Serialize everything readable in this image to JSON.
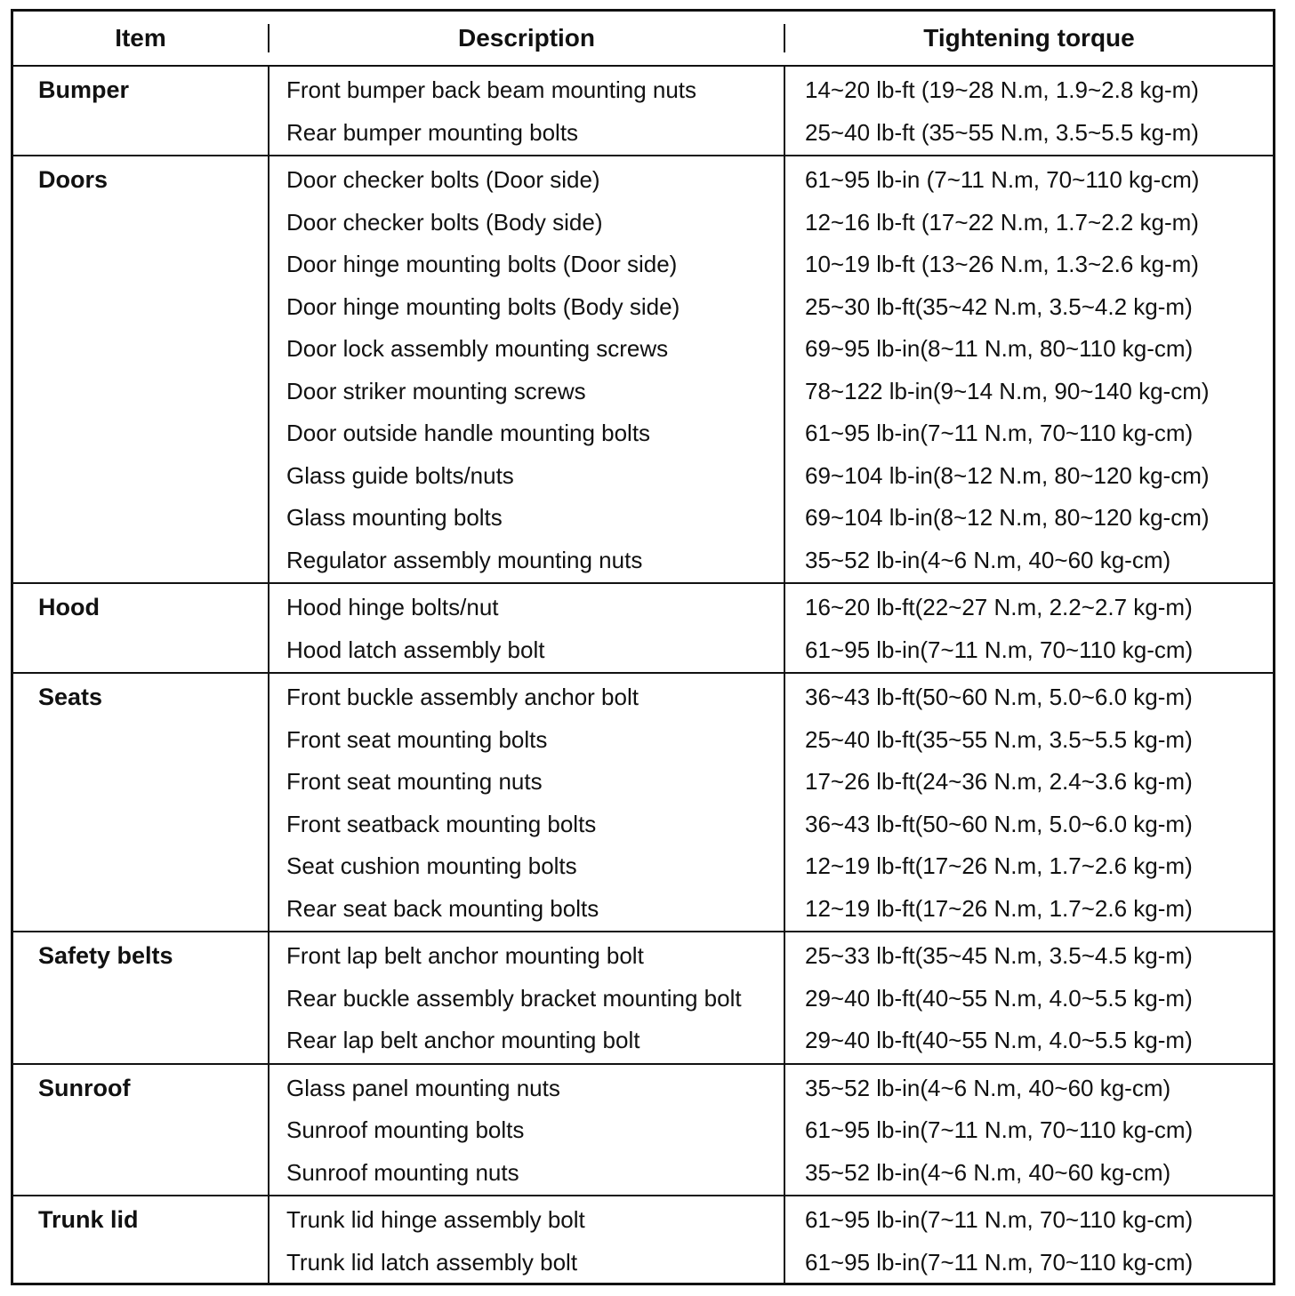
{
  "colors": {
    "ink": "#111111",
    "paper": "#ffffff"
  },
  "table": {
    "headers": {
      "item": "Item",
      "description": "Description",
      "torque": "Tightening torque"
    },
    "sections": [
      {
        "item": "Bumper",
        "rows": [
          {
            "description": "Front bumper back beam mounting nuts",
            "torque": "14~20 lb-ft (19~28 N.m, 1.9~2.8 kg-m)"
          },
          {
            "description": "Rear bumper mounting bolts",
            "torque": "25~40 lb-ft (35~55 N.m, 3.5~5.5 kg-m)"
          }
        ]
      },
      {
        "item": "Doors",
        "rows": [
          {
            "description": "Door checker bolts (Door side)",
            "torque": "61~95 lb-in (7~11 N.m, 70~110 kg-cm)"
          },
          {
            "description": "Door checker bolts (Body side)",
            "torque": "12~16 lb-ft (17~22 N.m, 1.7~2.2 kg-m)"
          },
          {
            "description": "Door hinge mounting bolts (Door side)",
            "torque": "10~19 lb-ft (13~26 N.m, 1.3~2.6 kg-m)"
          },
          {
            "description": "Door hinge mounting bolts (Body side)",
            "torque": "25~30 lb-ft(35~42 N.m, 3.5~4.2 kg-m)"
          },
          {
            "description": "Door lock assembly mounting screws",
            "torque": "69~95 lb-in(8~11 N.m, 80~110 kg-cm)"
          },
          {
            "description": "Door striker mounting screws",
            "torque": "78~122 lb-in(9~14 N.m, 90~140 kg-cm)"
          },
          {
            "description": "Door outside handle mounting bolts",
            "torque": "61~95 lb-in(7~11 N.m, 70~110 kg-cm)"
          },
          {
            "description": "Glass guide bolts/nuts",
            "torque": "69~104 lb-in(8~12 N.m, 80~120 kg-cm)"
          },
          {
            "description": "Glass mounting bolts",
            "torque": "69~104 lb-in(8~12 N.m, 80~120 kg-cm)"
          },
          {
            "description": "Regulator assembly mounting nuts",
            "torque": "35~52 lb-in(4~6 N.m, 40~60 kg-cm)"
          }
        ]
      },
      {
        "item": "Hood",
        "rows": [
          {
            "description": "Hood hinge bolts/nut",
            "torque": "16~20 lb-ft(22~27 N.m, 2.2~2.7 kg-m)"
          },
          {
            "description": "Hood latch assembly bolt",
            "torque": "61~95 lb-in(7~11 N.m, 70~110 kg-cm)"
          }
        ]
      },
      {
        "item": "Seats",
        "rows": [
          {
            "description": "Front buckle assembly anchor bolt",
            "torque": "36~43 lb-ft(50~60 N.m, 5.0~6.0 kg-m)"
          },
          {
            "description": "Front seat mounting bolts",
            "torque": "25~40 lb-ft(35~55 N.m, 3.5~5.5 kg-m)"
          },
          {
            "description": "Front seat mounting nuts",
            "torque": "17~26 lb-ft(24~36 N.m, 2.4~3.6 kg-m)"
          },
          {
            "description": "Front seatback mounting bolts",
            "torque": "36~43 lb-ft(50~60 N.m, 5.0~6.0 kg-m)"
          },
          {
            "description": "Seat cushion mounting bolts",
            "torque": "12~19 lb-ft(17~26 N.m, 1.7~2.6 kg-m)"
          },
          {
            "description": "Rear seat back mounting bolts",
            "torque": "12~19 lb-ft(17~26 N.m, 1.7~2.6 kg-m)"
          }
        ]
      },
      {
        "item": "Safety belts",
        "rows": [
          {
            "description": "Front lap belt anchor mounting bolt",
            "torque": "25~33 lb-ft(35~45 N.m, 3.5~4.5 kg-m)"
          },
          {
            "description": "Rear buckle assembly bracket mounting bolt",
            "torque": "29~40 lb-ft(40~55 N.m, 4.0~5.5 kg-m)"
          },
          {
            "description": "Rear lap belt anchor mounting bolt",
            "torque": "29~40 lb-ft(40~55 N.m, 4.0~5.5 kg-m)"
          }
        ]
      },
      {
        "item": "Sunroof",
        "rows": [
          {
            "description": "Glass panel mounting nuts",
            "torque": "35~52 lb-in(4~6 N.m, 40~60 kg-cm)"
          },
          {
            "description": "Sunroof mounting bolts",
            "torque": "61~95 lb-in(7~11 N.m, 70~110 kg-cm)"
          },
          {
            "description": "Sunroof mounting nuts",
            "torque": "35~52 lb-in(4~6 N.m, 40~60 kg-cm)"
          }
        ]
      },
      {
        "item": "Trunk lid",
        "rows": [
          {
            "description": "Trunk lid hinge assembly bolt",
            "torque": "61~95 lb-in(7~11 N.m, 70~110 kg-cm)"
          },
          {
            "description": "Trunk lid latch assembly bolt",
            "torque": "61~95 lb-in(7~11 N.m, 70~110 kg-cm)"
          }
        ]
      }
    ]
  }
}
